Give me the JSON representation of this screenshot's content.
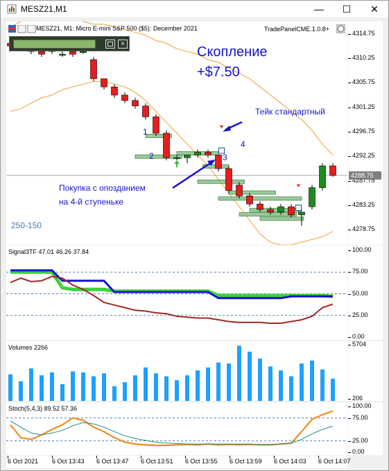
{
  "window": {
    "title": "MESZ21,M1",
    "controls": {
      "minimize": "—",
      "maximize": "☐",
      "close": "✕"
    }
  },
  "main_chart": {
    "header": "MESZ21, M1:  Micro E-mini S&P 500 ($5): December 2021",
    "panel_name": "TradePanelCME.1.0.8+",
    "annotation_title": "Скопление",
    "annotation_profit": "+$7.50",
    "label_take": "Тейк стандартный",
    "label_buy_line1": "Покупка с опозданием",
    "label_buy_line2": "на 4-й ступеньке",
    "steps": [
      "1",
      "2",
      "3",
      "4"
    ],
    "range_label": "250-150",
    "current_price": "4288.75",
    "price_ticks": [
      "4314.75",
      "4310.25",
      "4305.75",
      "4301.25",
      "4296.75",
      "4292.25",
      "4287.75",
      "4283.25",
      "4278.75"
    ]
  },
  "signal_panel": {
    "label": "Signal3TF 47.01 46.26 37.84",
    "ticks": [
      "100.00",
      "75.00",
      "50.00",
      "25.00",
      "0.00"
    ]
  },
  "volume_panel": {
    "label": "Volumes 2266",
    "ticks": [
      "5704",
      "206"
    ]
  },
  "stoch_panel": {
    "label": "Stoch(5,4,3) 89.52 57.36",
    "ticks": [
      "100.00",
      "75.00",
      "25.00",
      "0.00"
    ]
  },
  "time_axis": [
    "6 Oct 2021",
    "6 Oct 13:43",
    "6 Oct 13:47",
    "6 Oct 13:51",
    "6 Oct 13:55",
    "6 Oct 13:59",
    "6 Oct 14:03",
    "6 Oct 14:07"
  ],
  "colors": {
    "bull": "#1e8c1e",
    "bear": "#e61e1e",
    "annotation_blue": "#1414c8",
    "band_orange": "#f0a030",
    "signal_blue": "#1414d2",
    "signal_green": "#3cd23c",
    "signal_red": "#a02828",
    "volume": "#1ea0ff",
    "stoch_orange": "#f08c1e",
    "stoch_teal": "#1e8c8c"
  },
  "chart_data": [
    {
      "type": "candlestick",
      "title": "MESZ21, M1:  Micro E-mini S&P 500 ($5): December 2021",
      "ylim": [
        4276,
        4317
      ],
      "x": [
        "13:39",
        "13:40",
        "13:41",
        "13:42",
        "13:43",
        "13:44",
        "13:45",
        "13:46",
        "13:47",
        "13:48",
        "13:49",
        "13:50",
        "13:51",
        "13:52",
        "13:53",
        "13:54",
        "13:55",
        "13:56",
        "13:57",
        "13:58",
        "13:59",
        "14:00",
        "14:01",
        "14:02",
        "14:03",
        "14:04",
        "14:05",
        "14:06",
        "14:07",
        "14:08",
        "14:09",
        "14:10"
      ],
      "open": [
        4313.0,
        4312.5,
        4312.0,
        4311.5,
        4312.0,
        4311.0,
        4311.5,
        4311.5,
        4310.0,
        4306.5,
        4305.0,
        4303.5,
        4302.5,
        4301.5,
        4299.5,
        4296.5,
        4292.0,
        4292.0,
        4292.5,
        4293.0,
        4292.5,
        4290.0,
        4287.0,
        4285.0,
        4283.5,
        4282.5,
        4282.0,
        4283.0,
        4281.5,
        4283.0,
        4286.5,
        4290.5
      ],
      "close": [
        4312.5,
        4312.0,
        4311.5,
        4311.0,
        4311.5,
        4311.0,
        4311.0,
        4311.5,
        4306.5,
        4305.0,
        4303.5,
        4302.5,
        4301.5,
        4299.5,
        4296.5,
        4292.0,
        4292.0,
        4292.5,
        4293.0,
        4292.5,
        4290.0,
        4286.0,
        4285.0,
        4283.5,
        4282.5,
        4282.0,
        4283.0,
        4281.5,
        4282.0,
        4286.5,
        4290.5,
        4288.75
      ],
      "high": [
        4313.5,
        4313.0,
        4312.5,
        4312.0,
        4312.5,
        4311.5,
        4312.0,
        4312.0,
        4310.5,
        4306.5,
        4305.5,
        4304.0,
        4303.0,
        4302.0,
        4300.0,
        4297.0,
        4292.5,
        4292.5,
        4293.5,
        4293.5,
        4292.5,
        4290.5,
        4287.5,
        4285.5,
        4284.0,
        4283.0,
        4283.5,
        4283.5,
        4282.0,
        4287.0,
        4291.0,
        4291.0
      ],
      "low": [
        4312.0,
        4311.5,
        4311.0,
        4310.5,
        4311.0,
        4310.5,
        4310.5,
        4311.0,
        4306.0,
        4304.5,
        4303.0,
        4302.0,
        4301.0,
        4299.0,
        4296.0,
        4291.5,
        4291.5,
        4291.0,
        4292.0,
        4292.0,
        4289.5,
        4285.5,
        4284.5,
        4283.0,
        4282.0,
        4281.5,
        4281.5,
        4281.0,
        4279.5,
        4282.5,
        4286.0,
        4288.5
      ],
      "band_upper": [
        4316.0,
        4317.0,
        4318.0,
        4318.5,
        4319.0,
        4318.5,
        4318.0,
        4317.0,
        4316.5,
        4316.5,
        4316.0,
        4315.5,
        4315.0,
        4314.5,
        4313.5,
        4313.0,
        4312.0,
        4311.5,
        4311.0,
        4310.0,
        4309.5,
        4308.5,
        4307.5,
        4306.5,
        4305.0,
        4303.5,
        4302.0,
        4300.5,
        4299.0,
        4297.0,
        4294.5,
        4292.5
      ],
      "band_lower": [
        4300.5,
        4301.0,
        4302.0,
        4303.0,
        4303.5,
        4304.5,
        4305.0,
        4305.5,
        4306.0,
        4306.0,
        4305.5,
        4305.0,
        4304.0,
        4302.5,
        4300.5,
        4298.5,
        4296.5,
        4294.5,
        4292.5,
        4290.5,
        4288.0,
        4285.5,
        4283.0,
        4280.5,
        4278.0,
        4276.5,
        4276.0,
        4276.0,
        4276.5,
        4277.0,
        4277.5,
        4278.5
      ],
      "current_price": 4288.75
    },
    {
      "type": "line",
      "title": "Signal3TF 47.01 46.26 37.84",
      "ylim": [
        0,
        100
      ],
      "x": [
        0,
        1,
        2,
        3,
        4,
        5,
        6,
        7,
        8,
        9,
        10,
        11,
        12,
        13,
        14,
        15,
        16,
        17,
        18,
        19,
        20,
        21,
        22,
        23,
        24,
        25,
        26,
        27,
        28,
        29,
        30,
        31
      ],
      "series": [
        {
          "name": "",
          "values": [
            77,
            77,
            77,
            77,
            77,
            65,
            65,
            65,
            65,
            65,
            52,
            52,
            52,
            52,
            52,
            52,
            52,
            52,
            52,
            52,
            45,
            45,
            45,
            45,
            45,
            45,
            45,
            47,
            47,
            47,
            47,
            47
          ]
        },
        {
          "name": "",
          "values": [
            75,
            75,
            75,
            75,
            75,
            57,
            55,
            55,
            55,
            55,
            53,
            53,
            53,
            53,
            53,
            53,
            53,
            53,
            53,
            53,
            48,
            48,
            48,
            48,
            48,
            48,
            48,
            48,
            48,
            48,
            48,
            47
          ]
        },
        {
          "name": "",
          "values": [
            63,
            68,
            64,
            65,
            70,
            68,
            60,
            55,
            48,
            40,
            37,
            34,
            31,
            30,
            28,
            27,
            24,
            23,
            22,
            22,
            20,
            18,
            17,
            17,
            17,
            16,
            16,
            18,
            20,
            24,
            34,
            38
          ]
        }
      ]
    },
    {
      "type": "bar",
      "title": "Volumes 2266",
      "ylim": [
        0,
        5704
      ],
      "values": [
        2700,
        2000,
        3300,
        2600,
        2900,
        1700,
        3000,
        2900,
        2500,
        2800,
        1500,
        1900,
        2600,
        3400,
        2800,
        2500,
        2100,
        2600,
        3100,
        3400,
        3900,
        3800,
        5600,
        5000,
        4300,
        3500,
        3100,
        2500,
        3800,
        4100,
        3200,
        2266
      ]
    },
    {
      "type": "line",
      "title": "Stoch(5,4,3) 89.52 57.36",
      "ylim": [
        0,
        100
      ],
      "x": [
        0,
        1,
        2,
        3,
        4,
        5,
        6,
        7,
        8,
        9,
        10,
        11,
        12,
        13,
        14,
        15,
        16,
        17,
        18,
        19,
        20,
        21,
        22,
        23,
        24,
        25,
        26,
        27,
        28,
        29,
        30,
        31
      ],
      "series": [
        {
          "name": "",
          "values": [
            60,
            32,
            28,
            38,
            50,
            60,
            75,
            70,
            55,
            45,
            32,
            22,
            18,
            16,
            15,
            15,
            16,
            17,
            16,
            18,
            16,
            17,
            16,
            17,
            16,
            16,
            18,
            20,
            45,
            72,
            82,
            90
          ]
        },
        {
          "name": "",
          "values": [
            68,
            55,
            42,
            38,
            42,
            48,
            58,
            65,
            62,
            55,
            45,
            36,
            30,
            26,
            22,
            20,
            19,
            18,
            18,
            18,
            18,
            18,
            18,
            18,
            17,
            17,
            18,
            20,
            28,
            40,
            50,
            57
          ]
        }
      ]
    }
  ]
}
